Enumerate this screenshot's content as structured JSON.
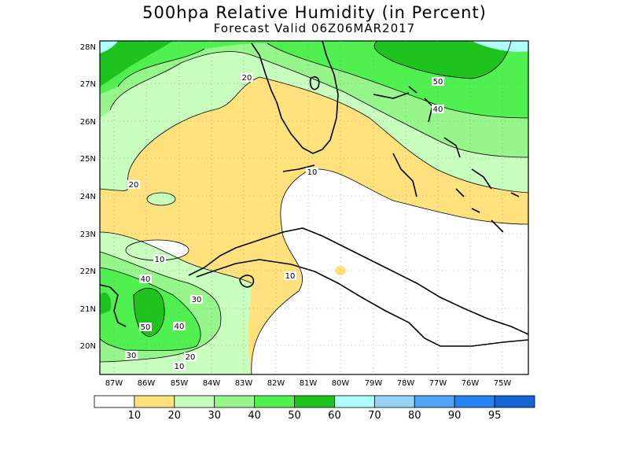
{
  "title": "500hpa Relative Humidity (in Percent)",
  "subtitle": "Forecast Valid  06Z06MAR2017",
  "lat_labels": [
    "28N",
    "27N",
    "26N",
    "25N",
    "24N",
    "23N",
    "22N",
    "21N",
    "20N"
  ],
  "lon_labels": [
    "87W",
    "86W",
    "85W",
    "84W",
    "83W",
    "82W",
    "81W",
    "80W",
    "79W",
    "78W",
    "77W",
    "76W",
    "75W"
  ],
  "contour_labels": [
    "20",
    "50",
    "40",
    "10",
    "20",
    "10",
    "10",
    "40",
    "30",
    "50",
    "40",
    "30",
    "20",
    "10"
  ],
  "colorbar": {
    "colors": [
      "#ffffff",
      "#ffe27d",
      "#c8ffbe",
      "#96f58b",
      "#50f050",
      "#1ec31e",
      "#afffff",
      "#96d2fa",
      "#50a5f5",
      "#2882f0",
      "#1464d2"
    ],
    "labels": [
      "10",
      "20",
      "30",
      "40",
      "50",
      "60",
      "70",
      "80",
      "90",
      "95"
    ]
  }
}
